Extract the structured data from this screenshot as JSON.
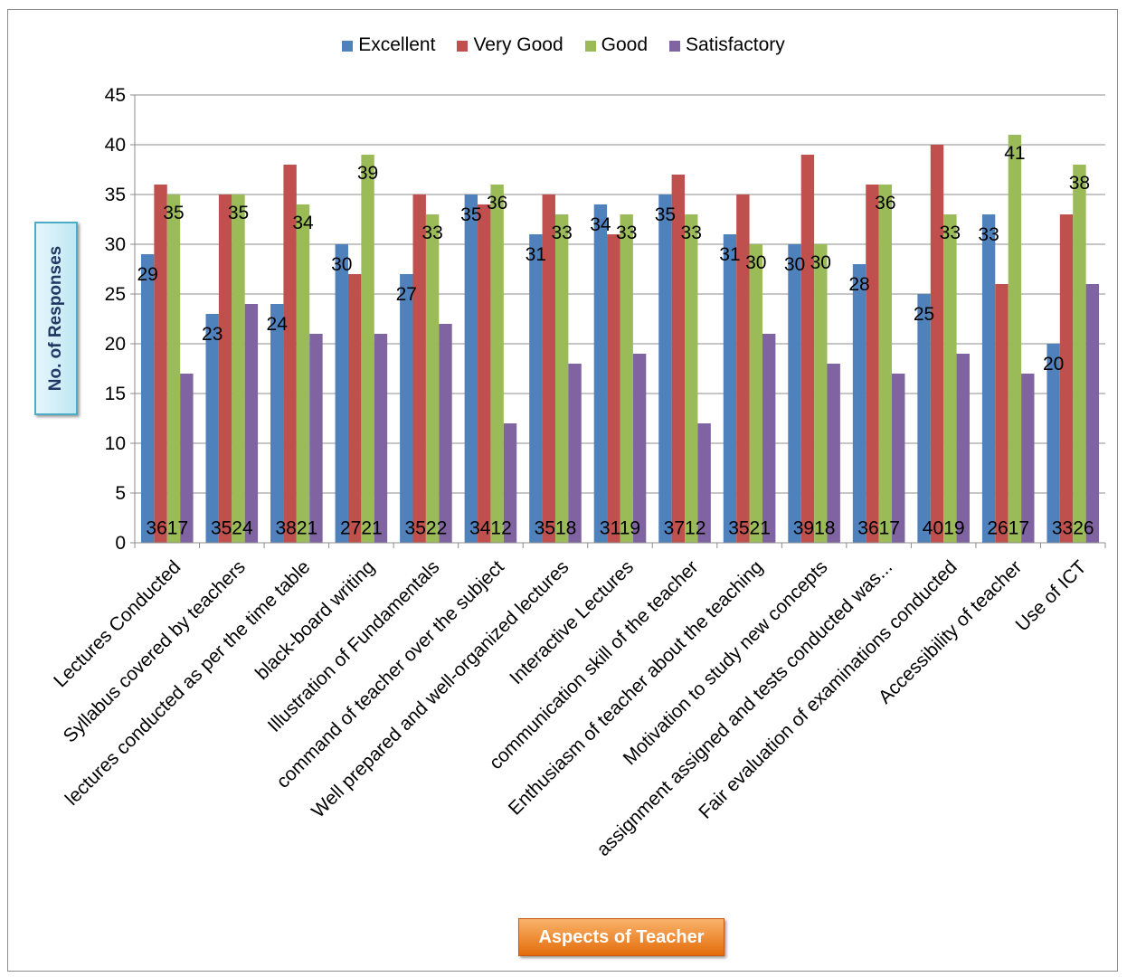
{
  "chart_data": {
    "type": "bar",
    "xlabel": "Aspects of Teacher",
    "ylabel": "No. of Responses",
    "ylim": [
      0,
      45
    ],
    "yticks": [
      0,
      5,
      10,
      15,
      20,
      25,
      30,
      35,
      40,
      45
    ],
    "grid": true,
    "legend": "top",
    "categories": [
      "Lectures Conducted",
      "Syllabus covered by teachers",
      "lectures conducted as per the time table",
      "black-board writing",
      "Illustration of Fundamentals",
      "command of teacher over the subject",
      "Well prepared and well-organized lectures",
      "Interactive Lectures",
      "communication skill of the teacher",
      "Enthusiasm of teacher about the teaching",
      "Motivation to study new concepts",
      "assignment assigned and tests conducted was...",
      "Fair evaluation of examinations conducted",
      "Accessibility of teacher",
      "Use of ICT"
    ],
    "series": [
      {
        "name": "Excellent",
        "color": "#4f81bd",
        "values": [
          29,
          23,
          24,
          30,
          27,
          35,
          31,
          34,
          35,
          31,
          30,
          28,
          25,
          33,
          20
        ]
      },
      {
        "name": "Very Good",
        "color": "#c0504d",
        "values": [
          36,
          35,
          38,
          27,
          35,
          34,
          35,
          31,
          37,
          35,
          39,
          36,
          40,
          26,
          33
        ]
      },
      {
        "name": "Good",
        "color": "#9bbb59",
        "values": [
          35,
          35,
          34,
          39,
          33,
          36,
          33,
          33,
          33,
          30,
          30,
          36,
          33,
          41,
          38
        ]
      },
      {
        "name": "Satisfactory",
        "color": "#8064a2",
        "values": [
          17,
          24,
          21,
          21,
          22,
          12,
          18,
          19,
          12,
          21,
          18,
          17,
          19,
          17,
          26
        ]
      }
    ],
    "data_labels": {
      "excellent": [
        "29",
        "23",
        "24",
        "30",
        "27",
        "35",
        "31",
        "34",
        "35",
        "31",
        "30",
        "28",
        "25",
        "33",
        "20"
      ],
      "good": [
        "35",
        "35",
        "34",
        "39",
        "33",
        "36",
        "33",
        "33",
        "33",
        "30",
        "30",
        "36",
        "33",
        "41",
        "38"
      ],
      "bottom": [
        "3617",
        "3524",
        "3821",
        "2721",
        "3522",
        "3412",
        "3518",
        "3119",
        "3712",
        "3521",
        "3918",
        "3617",
        "4019",
        "2617",
        "3326"
      ]
    }
  }
}
